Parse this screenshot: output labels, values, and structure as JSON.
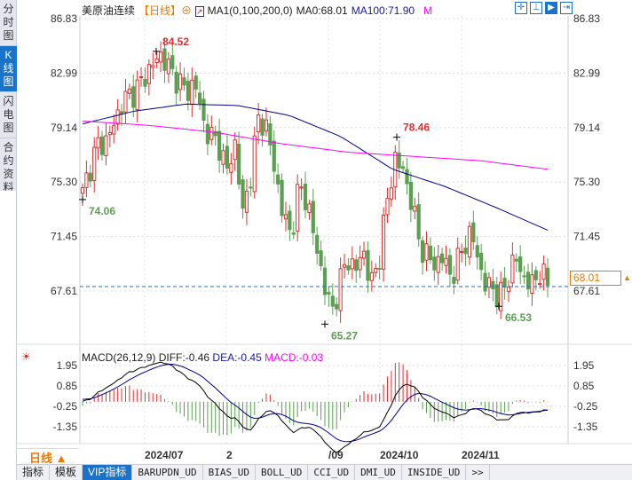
{
  "sidebar": {
    "tabs": [
      {
        "label": "分时图"
      },
      {
        "label": "K线图",
        "active": true
      },
      {
        "label": "闪电图"
      },
      {
        "label": "合约资料"
      }
    ]
  },
  "legend": {
    "instrument": "美原油连续",
    "period": "【日线】",
    "indicator": "MA1(0,100,200,0)",
    "ma0": "MA0:68.01",
    "ma100": "MA100:71.90",
    "ma200": "M"
  },
  "toolbar": [
    "crosshair",
    "zoom-range",
    "draw",
    "exit"
  ],
  "price_axis": {
    "ticks": [
      "86.83",
      "82.99",
      "79.14",
      "75.30",
      "71.45",
      "67.61"
    ],
    "current": "68.01"
  },
  "annotations": {
    "high1": "84.52",
    "low1": "74.06",
    "high2": "78.46",
    "low2": "65.27",
    "low3": "66.53"
  },
  "macd": {
    "title": "MACD(26,12,9)",
    "diff": "DIFF:-0.46",
    "dea": "DEA:-0.45",
    "macd": "MACD:-0.03",
    "ticks": [
      "1.95",
      "0.85",
      "-0.25",
      "-1.35"
    ]
  },
  "period_box": {
    "label": "日线",
    "arrow": "▲"
  },
  "date_labels": [
    "2024/07",
    "2",
    "/09",
    "2024/10",
    "2024/11"
  ],
  "bottom_tabs": [
    "指标",
    "模板",
    "VIP指标",
    "BARUPDN_UD",
    "BIAS_UD",
    "BOLL_UD",
    "CCI_UD",
    "DMI_UD",
    "INSIDE_UD",
    ">>"
  ],
  "colors": {
    "up": "#e03030",
    "down": "#5aa050",
    "ma100": "#00008b",
    "ma200": "#ff00ff",
    "accent": "#f07800"
  },
  "chart_data": {
    "type": "candlestick",
    "title": "美原油连续 日线",
    "close_anchors": [
      74.5,
      76.5,
      78,
      78.2,
      79.5,
      81,
      81.5,
      82,
      83,
      83.8,
      84.3,
      83,
      82.5,
      81.5,
      82.5,
      79.5,
      78.5,
      78,
      76,
      78,
      73,
      76,
      80,
      79,
      76,
      73,
      71.5,
      75,
      74,
      71,
      68.5,
      66,
      68,
      70,
      69,
      70.5,
      68,
      70,
      74,
      77,
      76,
      74,
      71,
      70,
      69.5,
      70,
      68.5,
      70,
      71.5,
      71,
      68,
      68,
      67,
      68.5,
      70,
      68.5,
      68,
      69,
      68.01
    ],
    "ma100": [
      79.4,
      80.3,
      80.8,
      80.7,
      80,
      78.5,
      76.2,
      75,
      73.5,
      71.9
    ],
    "ma200": [
      79.6,
      79.3,
      78.8,
      78,
      77.4,
      77.1,
      76.8,
      76.2
    ],
    "ylim": [
      65,
      87
    ]
  }
}
